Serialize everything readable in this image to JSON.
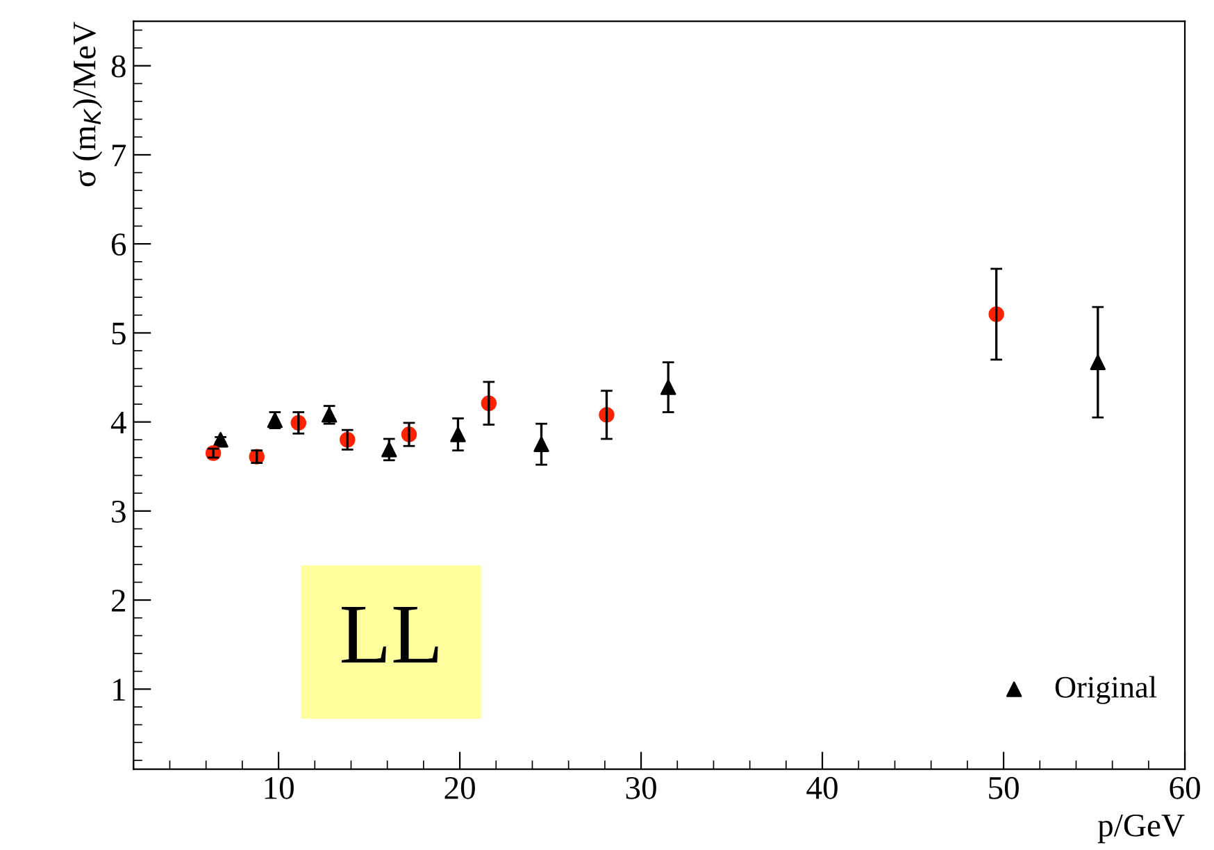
{
  "chart_data": {
    "type": "scatter",
    "xlabel": "p/GeV",
    "ylabel": "σ (m$_{K}$)/MeV",
    "xlim": [
      2,
      60
    ],
    "xticks": [
      10,
      20,
      30,
      40,
      50,
      60
    ],
    "ylim": [
      0.1,
      8.5
    ],
    "yticks": [
      1,
      2,
      3,
      4,
      5,
      6,
      7,
      8
    ],
    "grid": false,
    "legend": "bottom right",
    "annotations": [
      "LL"
    ],
    "series": [
      {
        "name": "Original",
        "color": "#000000",
        "marker": "triangle",
        "x": [
          6.8,
          9.8,
          12.8,
          16.1,
          19.9,
          24.5,
          31.5,
          55.2
        ],
        "values": [
          3.8,
          4.02,
          4.08,
          3.69,
          3.86,
          3.75,
          4.39,
          4.67
        ],
        "errors": [
          0.03,
          0.09,
          0.1,
          0.12,
          0.18,
          0.23,
          0.28,
          0.62
        ]
      },
      {
        "color": "#ff2200",
        "marker": "circle",
        "x": [
          6.4,
          8.8,
          11.1,
          13.8,
          17.2,
          21.6,
          28.1,
          49.6
        ],
        "values": [
          3.65,
          3.61,
          3.99,
          3.8,
          3.86,
          4.21,
          4.08,
          5.21
        ],
        "errors": [
          0.05,
          0.07,
          0.12,
          0.11,
          0.13,
          0.24,
          0.27,
          0.51
        ]
      }
    ]
  }
}
